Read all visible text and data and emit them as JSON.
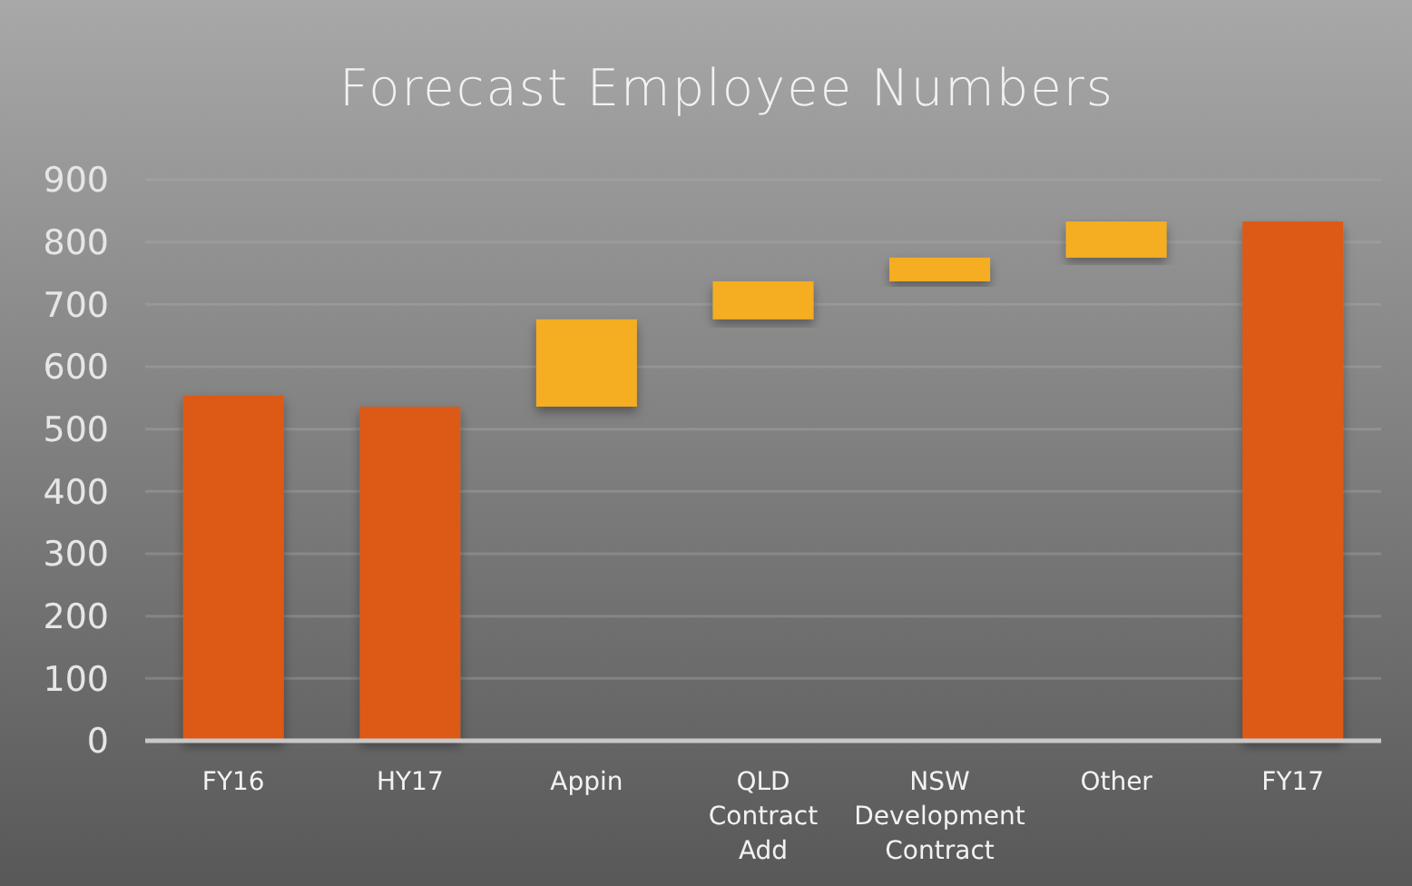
{
  "chart_data": {
    "type": "bar",
    "title": "Forecast Employee Numbers",
    "categories": [
      "FY16",
      "HY17",
      "Appin",
      "QLD Contract Add",
      "NSW Development Contract",
      "Other",
      "FY17"
    ],
    "values": [
      554,
      536,
      140,
      61,
      38,
      58,
      833
    ],
    "base": [
      0,
      0,
      536,
      676,
      737,
      775,
      0
    ],
    "colors": [
      "#dc5a18",
      "#dc5a18",
      "#f5ad22",
      "#f5ad22",
      "#f5ad22",
      "#f5ad22",
      "#dc5a18"
    ],
    "ylim": [
      0,
      900
    ],
    "yticks": [
      0,
      100,
      200,
      300,
      400,
      500,
      600,
      700,
      800,
      900
    ],
    "grid": "y"
  }
}
